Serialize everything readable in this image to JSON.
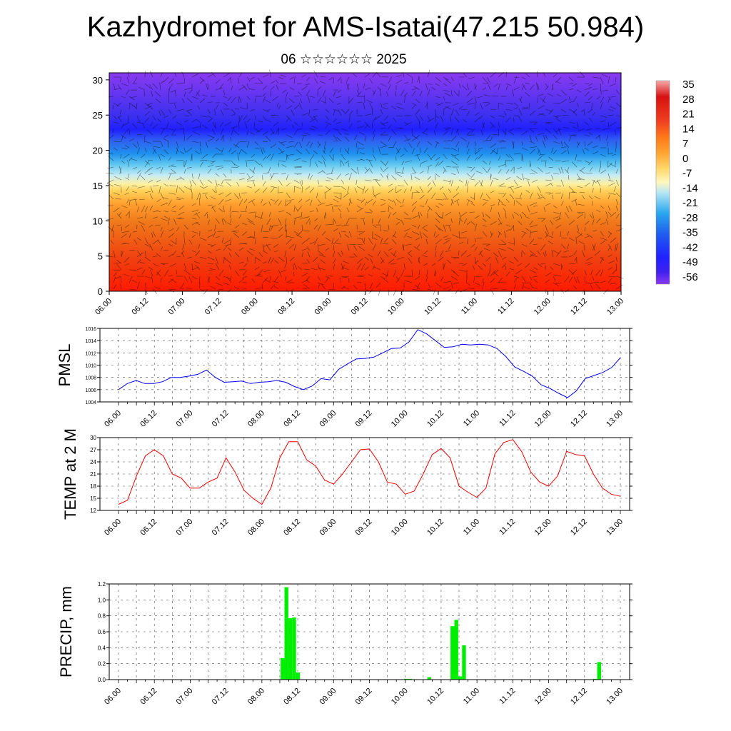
{
  "header": {
    "title": "Kazhydromet for AMS-Isatai(47.215 50.984)",
    "subtitle": "06 ☆☆☆☆☆☆ 2025"
  },
  "time_ticks": [
    "06.00",
    "06.12",
    "07.00",
    "07.12",
    "08.00",
    "08.12",
    "09.00",
    "09.12",
    "10.00",
    "10.12",
    "11.00",
    "11.12",
    "12.00",
    "12.12",
    "13.00"
  ],
  "colors": {
    "pmsl_line": "#0000ee",
    "temp_line": "#ee0000",
    "precip_bar": "#00ee00"
  },
  "chart_data": [
    {
      "type": "heatmap",
      "title": "",
      "xlabel": "",
      "ylabel": "",
      "ylim": [
        0,
        31
      ],
      "yticks": [
        0,
        5,
        10,
        15,
        20,
        25,
        30
      ],
      "colorbar": {
        "labels": [
          "35",
          "28",
          "21",
          "14",
          "7",
          "0",
          "-7",
          "-14",
          "-21",
          "-28",
          "-35",
          "-42",
          "-49",
          "-56"
        ],
        "colors": [
          "#f7aaaa",
          "#e01818",
          "#f04020",
          "#ff7a1a",
          "#ffaa3a",
          "#ffd766",
          "#fff2a0",
          "#a8e0f0",
          "#3ab6ef",
          "#1e86ee",
          "#3050f0",
          "#2222ff",
          "#6030f0",
          "#8a3af0"
        ]
      },
      "overlay": "wind vectors"
    },
    {
      "type": "line",
      "ylabel": "PMSL",
      "ylim": [
        1004,
        1016
      ],
      "yticks": [
        1004,
        1006,
        1008,
        1010,
        1012,
        1014,
        1016
      ],
      "series": [
        {
          "values": [
            1006.0,
            1007.0,
            1007.5,
            1007.0,
            1007.0,
            1007.3,
            1008.0,
            1008.0,
            1008.2,
            1008.5,
            1009.2,
            1008.0,
            1007.2,
            1007.3,
            1007.4,
            1007.0,
            1007.2,
            1007.3,
            1007.5,
            1007.2,
            1006.5,
            1006.0,
            1006.6,
            1007.8,
            1007.6,
            1009.3,
            1010.2,
            1011.0,
            1011.1,
            1011.3,
            1012.0,
            1012.7,
            1012.8,
            1013.8,
            1015.8,
            1015.1,
            1014.0,
            1012.9,
            1013.0,
            1013.4,
            1013.3,
            1013.4,
            1013.3,
            1012.7,
            1011.4,
            1009.7,
            1009.0,
            1008.2,
            1006.8,
            1006.2,
            1005.4,
            1004.7,
            1005.8,
            1007.8,
            1008.3,
            1008.8,
            1009.6,
            1011.2
          ]
        }
      ]
    },
    {
      "type": "line",
      "ylabel": "TEMP at 2 M",
      "ylim": [
        12,
        30
      ],
      "yticks": [
        12,
        15,
        18,
        21,
        24,
        27,
        30
      ],
      "series": [
        {
          "values": [
            13.5,
            14.5,
            20.5,
            25.5,
            27.0,
            25.5,
            21.0,
            20.0,
            17.5,
            17.5,
            19.0,
            20.0,
            25.0,
            21.5,
            17.0,
            15.0,
            13.5,
            17.5,
            25.0,
            29.0,
            29.0,
            24.5,
            23.0,
            19.5,
            18.5,
            21.0,
            24.0,
            27.0,
            27.2,
            24.0,
            19.0,
            18.5,
            16.0,
            16.8,
            21.0,
            25.8,
            27.3,
            25.0,
            18.0,
            16.5,
            15.2,
            17.5,
            26.0,
            28.8,
            29.5,
            26.5,
            21.5,
            19.0,
            18.0,
            20.5,
            26.6,
            25.8,
            25.5,
            21.0,
            17.5,
            16.0,
            15.5
          ]
        }
      ]
    },
    {
      "type": "bar",
      "ylabel": "PRECIP, mm",
      "ylim": [
        0,
        1.2
      ],
      "yticks": [
        "0.0",
        "0.2",
        "0.4",
        "0.6",
        "0.8",
        "1.0",
        "1.2"
      ],
      "series": [
        {
          "values": [
            0,
            0,
            0,
            0,
            0,
            0,
            0,
            0,
            0,
            0,
            0,
            0,
            0,
            0,
            0,
            0,
            0,
            0,
            0,
            0,
            0,
            0,
            0,
            0,
            0,
            0,
            0,
            0,
            0,
            0,
            0,
            0,
            0,
            0,
            0,
            0,
            0,
            0,
            0,
            0,
            0,
            0,
            0.27,
            1.16,
            0.77,
            0.78,
            0.09,
            0,
            0,
            0,
            0,
            0,
            0,
            0,
            0,
            0,
            0,
            0,
            0,
            0,
            0,
            0,
            0,
            0,
            0,
            0,
            0,
            0,
            0,
            0,
            0,
            0,
            0,
            0,
            0.01,
            0.01,
            0,
            0,
            0,
            0,
            0.03,
            0,
            0,
            0,
            0,
            0,
            0.67,
            0.75,
            0.04,
            0.43,
            0,
            0,
            0,
            0,
            0,
            0,
            0,
            0,
            0,
            0,
            0,
            0,
            0,
            0,
            0,
            0,
            0,
            0,
            0,
            0,
            0,
            0,
            0,
            0,
            0,
            0,
            0,
            0,
            0,
            0,
            0,
            0,
            0,
            0.01,
            0.22,
            0,
            0,
            0,
            0,
            0,
            0
          ]
        }
      ]
    }
  ]
}
